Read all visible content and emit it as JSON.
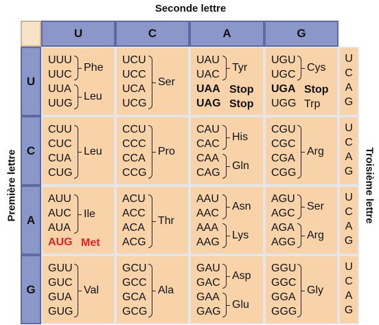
{
  "titles": {
    "top": "Seconde lettre",
    "left": "Première lettre",
    "right": "Troisième lettre"
  },
  "second_letters": [
    "U",
    "C",
    "A",
    "G"
  ],
  "first_letters": [
    "U",
    "C",
    "A",
    "G"
  ],
  "third_letters": [
    "U",
    "C",
    "A",
    "G"
  ],
  "colors": {
    "header": "#8b96c9",
    "cell": "#f8d2a9",
    "highlight": "#e0242b"
  },
  "cells": [
    [
      {
        "codons": [
          "UUU",
          "UUC",
          "UUA",
          "UUG"
        ],
        "groups": [
          {
            "label": "Phe",
            "rows": [
              0,
              1
            ]
          },
          {
            "label": "Leu",
            "rows": [
              2,
              3
            ]
          }
        ]
      },
      {
        "codons": [
          "UCU",
          "UCC",
          "UCA",
          "UCG"
        ],
        "groups": [
          {
            "label": "Ser",
            "rows": [
              0,
              3
            ]
          }
        ]
      },
      {
        "codons": [
          "UAU",
          "UAC",
          "UAA",
          "UAG"
        ],
        "groups": [
          {
            "label": "Tyr",
            "rows": [
              0,
              1
            ]
          },
          {
            "label": "Stop",
            "rows": [
              2
            ],
            "style": "bold",
            "nobrace": true
          },
          {
            "label": "Stop",
            "rows": [
              3
            ],
            "style": "bold",
            "nobrace": true
          }
        ],
        "codon_styles": [
          "",
          "",
          "bold",
          "bold"
        ]
      },
      {
        "codons": [
          "UGU",
          "UGC",
          "UGA",
          "UGG"
        ],
        "groups": [
          {
            "label": "Cys",
            "rows": [
              0,
              1
            ]
          },
          {
            "label": "Stop",
            "rows": [
              2
            ],
            "style": "bold",
            "nobrace": true
          },
          {
            "label": "Trp",
            "rows": [
              3
            ],
            "nobrace": true
          }
        ],
        "codon_styles": [
          "",
          "",
          "bold",
          ""
        ]
      }
    ],
    [
      {
        "codons": [
          "CUU",
          "CUC",
          "CUA",
          "CUG"
        ],
        "groups": [
          {
            "label": "Leu",
            "rows": [
              0,
              3
            ]
          }
        ]
      },
      {
        "codons": [
          "CCU",
          "CCC",
          "CCA",
          "CCG"
        ],
        "groups": [
          {
            "label": "Pro",
            "rows": [
              0,
              3
            ]
          }
        ]
      },
      {
        "codons": [
          "CAU",
          "CAC",
          "CAA",
          "CAG"
        ],
        "groups": [
          {
            "label": "His",
            "rows": [
              0,
              1
            ]
          },
          {
            "label": "Gln",
            "rows": [
              2,
              3
            ]
          }
        ]
      },
      {
        "codons": [
          "CGU",
          "CGC",
          "CGA",
          "CGG"
        ],
        "groups": [
          {
            "label": "Arg",
            "rows": [
              0,
              3
            ]
          }
        ]
      }
    ],
    [
      {
        "codons": [
          "AUU",
          "AUC",
          "AUA",
          "AUG"
        ],
        "groups": [
          {
            "label": "Ile",
            "rows": [
              0,
              2
            ]
          },
          {
            "label": "Met",
            "rows": [
              3
            ],
            "style": "red",
            "nobrace": true
          }
        ],
        "codon_styles": [
          "",
          "",
          "",
          "red"
        ]
      },
      {
        "codons": [
          "ACU",
          "ACC",
          "ACA",
          "ACG"
        ],
        "groups": [
          {
            "label": "Thr",
            "rows": [
              0,
              3
            ]
          }
        ]
      },
      {
        "codons": [
          "AAU",
          "AAC",
          "AAA",
          "AAG"
        ],
        "groups": [
          {
            "label": "Asn",
            "rows": [
              0,
              1
            ]
          },
          {
            "label": "Lys",
            "rows": [
              2,
              3
            ]
          }
        ]
      },
      {
        "codons": [
          "AGU",
          "AGC",
          "AGA",
          "AGG"
        ],
        "groups": [
          {
            "label": "Ser",
            "rows": [
              0,
              1
            ]
          },
          {
            "label": "Arg",
            "rows": [
              2,
              3
            ]
          }
        ]
      }
    ],
    [
      {
        "codons": [
          "GUU",
          "GUC",
          "GUA",
          "GUG"
        ],
        "groups": [
          {
            "label": "Val",
            "rows": [
              0,
              3
            ]
          }
        ]
      },
      {
        "codons": [
          "GCU",
          "GCC",
          "GCA",
          "GCG"
        ],
        "groups": [
          {
            "label": "Ala",
            "rows": [
              0,
              3
            ]
          }
        ]
      },
      {
        "codons": [
          "GAU",
          "GAC",
          "GAA",
          "GAG"
        ],
        "groups": [
          {
            "label": "Asp",
            "rows": [
              0,
              1
            ]
          },
          {
            "label": "Glu",
            "rows": [
              2,
              3
            ]
          }
        ]
      },
      {
        "codons": [
          "GGU",
          "GGC",
          "GGA",
          "GGG"
        ],
        "groups": [
          {
            "label": "Gly",
            "rows": [
              0,
              3
            ]
          }
        ]
      }
    ]
  ]
}
